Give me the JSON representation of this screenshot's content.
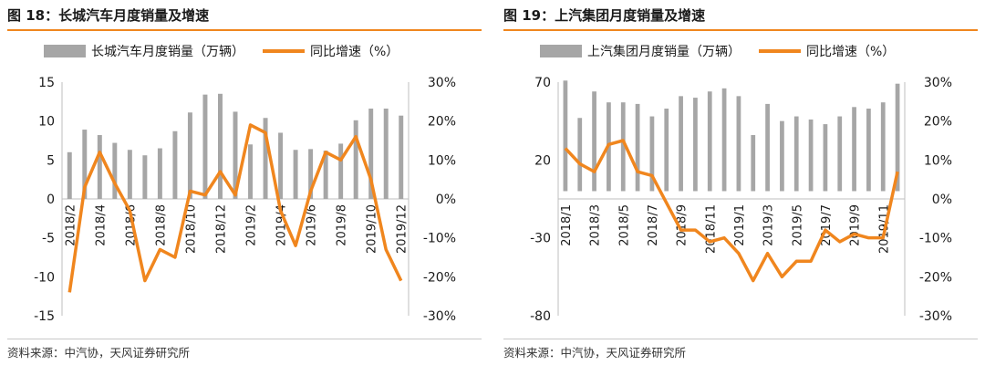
{
  "chart_data": [
    {
      "type": "bar+line",
      "title": "图 18：长城汽车月度销量及增速",
      "source": "资料来源：中汽协，天风证券研究所",
      "legend_position": "top",
      "grid": false,
      "colors": {
        "bar": "#a6a6a6",
        "line": "#f0861e"
      },
      "categories": [
        "2018/2",
        "2018/3",
        "2018/4",
        "2018/5",
        "2018/6",
        "2018/7",
        "2018/8",
        "2018/9",
        "2018/10",
        "2018/11",
        "2018/12",
        "2019/1",
        "2019/2",
        "2019/3",
        "2019/4",
        "2019/5",
        "2019/6",
        "2019/7",
        "2019/8",
        "2019/9",
        "2019/10",
        "2019/11",
        "2019/12"
      ],
      "tick_labels": [
        "2018/2",
        "2018/4",
        "2018/6",
        "2018/8",
        "2018/10",
        "2018/12",
        "2019/2",
        "2019/4",
        "2019/6",
        "2019/8",
        "2019/10",
        "2019/12"
      ],
      "series": [
        {
          "name": "长城汽车月度销量（万辆）",
          "axis": "left",
          "kind": "bar",
          "values": [
            6.0,
            8.9,
            8.2,
            7.2,
            6.3,
            5.6,
            6.5,
            8.7,
            11.1,
            13.4,
            13.5,
            11.2,
            7.0,
            10.4,
            8.5,
            6.3,
            6.4,
            6.2,
            7.1,
            10.1,
            11.6,
            11.6,
            10.7
          ]
        },
        {
          "name": "同比增速（%）",
          "axis": "right",
          "kind": "line",
          "values": [
            -24,
            3,
            12,
            4,
            -3,
            -21,
            -13,
            -15,
            2,
            1,
            7,
            1,
            19,
            17,
            -3,
            -12,
            2,
            12,
            10,
            16,
            5,
            -13,
            -21
          ]
        }
      ],
      "left_axis": {
        "ylim": [
          -15,
          15
        ],
        "ticks": [
          "15",
          "10",
          "5",
          "0",
          "-5",
          "-10",
          "-15"
        ]
      },
      "right_axis": {
        "ylim": [
          -30,
          30
        ],
        "ticks": [
          "30%",
          "20%",
          "10%",
          "0%",
          "-10%",
          "-20%",
          "-30%"
        ]
      }
    },
    {
      "type": "bar+line",
      "title": "图 19：上汽集团月度销量及增速",
      "source": "资料来源：中汽协，天风证券研究所",
      "legend_position": "top",
      "grid": false,
      "colors": {
        "bar": "#a6a6a6",
        "line": "#f0861e"
      },
      "categories": [
        "2018/1",
        "2018/2",
        "2018/3",
        "2018/4",
        "2018/5",
        "2018/6",
        "2018/7",
        "2018/8",
        "2018/9",
        "2018/10",
        "2018/11",
        "2018/12",
        "2019/1",
        "2019/2",
        "2019/3",
        "2019/4",
        "2019/5",
        "2019/6",
        "2019/7",
        "2019/8",
        "2019/9",
        "2019/10",
        "2019/11",
        "2019/12"
      ],
      "tick_labels": [
        "2018/1",
        "2018/3",
        "2018/5",
        "2018/7",
        "2018/9",
        "2018/11",
        "2019/1",
        "2019/3",
        "2019/5",
        "2019/7",
        "2019/9",
        "2019/11"
      ],
      "series": [
        {
          "name": "上汽集团月度销量（万辆）",
          "axis": "left",
          "kind": "bar",
          "values": [
            71,
            47,
            64,
            57,
            57,
            56,
            48,
            53,
            61,
            60,
            64,
            66,
            61,
            36,
            56,
            45,
            48,
            46,
            43,
            48,
            54,
            53,
            57,
            69
          ]
        },
        {
          "name": "同比增速（%）",
          "axis": "right",
          "kind": "line",
          "values": [
            13,
            9,
            7,
            14,
            15,
            7,
            6,
            -1,
            -8,
            -8,
            -11,
            -10,
            -14,
            -21,
            -14,
            -20,
            -16,
            -16,
            -8,
            -11,
            -9,
            -10,
            -10,
            7
          ]
        }
      ],
      "left_axis": {
        "ylim": [
          -80,
          70
        ],
        "ticks": [
          "70",
          "20",
          "-30",
          "-80"
        ]
      },
      "right_axis": {
        "ylim": [
          -30,
          30
        ],
        "ticks": [
          "30%",
          "20%",
          "10%",
          "0%",
          "-10%",
          "-20%",
          "-30%"
        ]
      }
    }
  ]
}
